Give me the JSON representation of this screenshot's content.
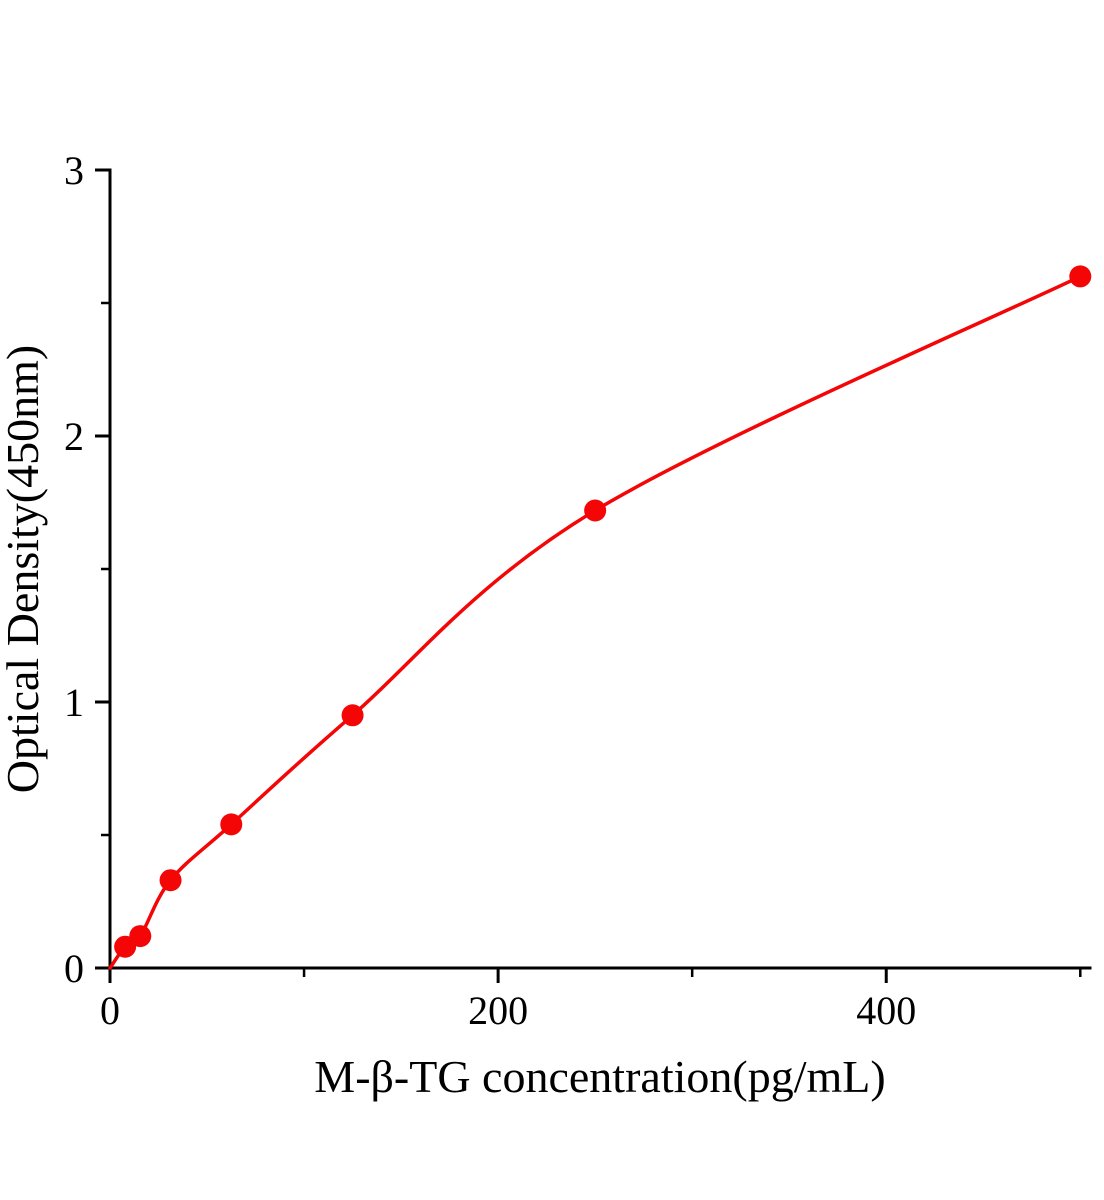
{
  "figure": {
    "background_color": "#ffffff",
    "description": "ELISA standard curve"
  },
  "chart_data": {
    "type": "scatter",
    "title": "",
    "xlabel": "M-β-TG concentration(pg/mL)",
    "ylabel": "Optical Density(450nm)",
    "x": [
      7.8,
      15.6,
      31.2,
      62.5,
      125,
      250,
      500
    ],
    "y": [
      0.08,
      0.12,
      0.33,
      0.54,
      0.95,
      1.72,
      2.6
    ],
    "curve_start": [
      0,
      0
    ],
    "xlim": [
      0,
      505
    ],
    "ylim": [
      0,
      3
    ],
    "x_major_ticks": [
      0,
      200,
      400
    ],
    "x_minor_ticks": [
      100,
      300,
      500
    ],
    "y_major_ticks": [
      0,
      1,
      2,
      3
    ],
    "y_minor_ticks": [
      0.5,
      1.5,
      2.5
    ],
    "grid": false,
    "legend": null,
    "line_color": "#f40606",
    "point_color": "#f40606",
    "axis_color": "#000000"
  }
}
